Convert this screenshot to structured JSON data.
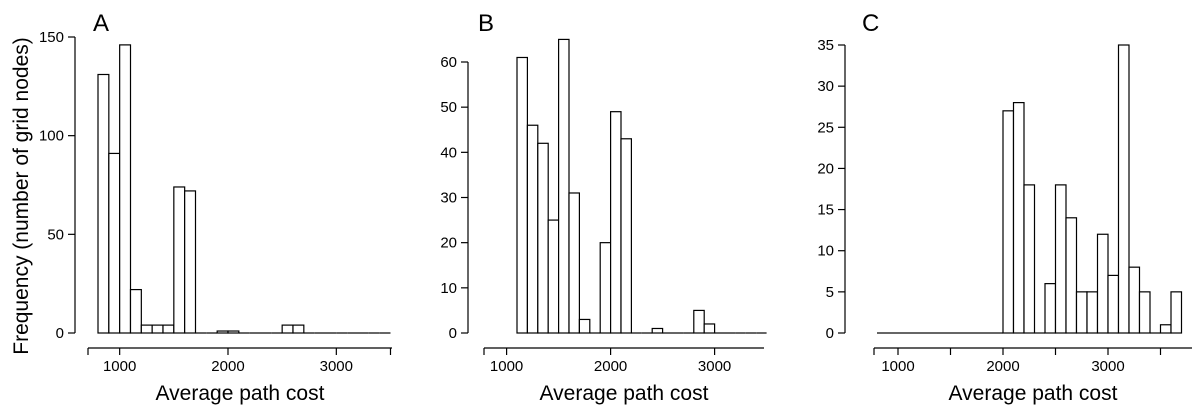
{
  "figure": {
    "ylabel": "Frequency (number of grid nodes)"
  },
  "chart_data": [
    {
      "type": "bar",
      "panel_label": "A",
      "xlabel": "Average path cost",
      "ylabel": "Frequency (number of grid nodes)",
      "x_bin_width": 100,
      "x_ticks": [
        1000,
        2000,
        3000
      ],
      "y_ticks": [
        0,
        50,
        100,
        150
      ],
      "xlim": [
        750,
        3550
      ],
      "ylim": [
        0,
        150
      ],
      "bins": [
        {
          "start": 800,
          "value": 131
        },
        {
          "start": 900,
          "value": 91
        },
        {
          "start": 1000,
          "value": 146
        },
        {
          "start": 1100,
          "value": 22
        },
        {
          "start": 1200,
          "value": 4
        },
        {
          "start": 1300,
          "value": 4
        },
        {
          "start": 1400,
          "value": 4
        },
        {
          "start": 1500,
          "value": 74
        },
        {
          "start": 1600,
          "value": 72
        },
        {
          "start": 1700,
          "value": 0
        },
        {
          "start": 1800,
          "value": 0
        },
        {
          "start": 1900,
          "value": 1
        },
        {
          "start": 2000,
          "value": 1
        },
        {
          "start": 2100,
          "value": 0
        },
        {
          "start": 2200,
          "value": 0
        },
        {
          "start": 2300,
          "value": 0
        },
        {
          "start": 2400,
          "value": 0
        },
        {
          "start": 2500,
          "value": 4
        },
        {
          "start": 2600,
          "value": 4
        },
        {
          "start": 2700,
          "value": 0
        },
        {
          "start": 2800,
          "value": 0
        },
        {
          "start": 2900,
          "value": 0
        },
        {
          "start": 3000,
          "value": 0
        },
        {
          "start": 3100,
          "value": 0
        },
        {
          "start": 3200,
          "value": 0
        },
        {
          "start": 3300,
          "value": 0
        },
        {
          "start": 3400,
          "value": 0
        }
      ],
      "grid": false
    },
    {
      "type": "bar",
      "panel_label": "B",
      "xlabel": "Average path cost",
      "x_bin_width": 100,
      "x_ticks": [
        1000,
        2000,
        3000
      ],
      "y_ticks": [
        0,
        10,
        20,
        30,
        40,
        50,
        60
      ],
      "xlim": [
        950,
        3600
      ],
      "ylim": [
        0,
        60
      ],
      "bins": [
        {
          "start": 1100,
          "value": 61
        },
        {
          "start": 1200,
          "value": 46
        },
        {
          "start": 1300,
          "value": 42
        },
        {
          "start": 1400,
          "value": 25
        },
        {
          "start": 1500,
          "value": 65
        },
        {
          "start": 1600,
          "value": 31
        },
        {
          "start": 1700,
          "value": 3
        },
        {
          "start": 1800,
          "value": 0
        },
        {
          "start": 1900,
          "value": 20
        },
        {
          "start": 2000,
          "value": 49
        },
        {
          "start": 2100,
          "value": 43
        },
        {
          "start": 2200,
          "value": 0
        },
        {
          "start": 2300,
          "value": 0
        },
        {
          "start": 2400,
          "value": 1
        },
        {
          "start": 2500,
          "value": 0
        },
        {
          "start": 2600,
          "value": 0
        },
        {
          "start": 2700,
          "value": 0
        },
        {
          "start": 2800,
          "value": 5
        },
        {
          "start": 2900,
          "value": 2
        },
        {
          "start": 3000,
          "value": 0
        },
        {
          "start": 3100,
          "value": 0
        },
        {
          "start": 3200,
          "value": 0
        },
        {
          "start": 3300,
          "value": 0
        },
        {
          "start": 3400,
          "value": 0
        }
      ],
      "grid": false
    },
    {
      "type": "bar",
      "panel_label": "C",
      "xlabel": "Average path cost",
      "x_bin_width": 100,
      "x_ticks": [
        1000,
        2000,
        3000
      ],
      "y_ticks": [
        0,
        5,
        10,
        15,
        20,
        25,
        30,
        35
      ],
      "xlim": [
        750,
        3700
      ],
      "ylim": [
        0,
        35
      ],
      "bins": [
        {
          "start": 800,
          "value": 0
        },
        {
          "start": 900,
          "value": 0
        },
        {
          "start": 1000,
          "value": 0
        },
        {
          "start": 1100,
          "value": 0
        },
        {
          "start": 1200,
          "value": 0
        },
        {
          "start": 1300,
          "value": 0
        },
        {
          "start": 1400,
          "value": 0
        },
        {
          "start": 1500,
          "value": 0
        },
        {
          "start": 1600,
          "value": 0
        },
        {
          "start": 1700,
          "value": 0
        },
        {
          "start": 1800,
          "value": 0
        },
        {
          "start": 1900,
          "value": 0
        },
        {
          "start": 2000,
          "value": 27
        },
        {
          "start": 2100,
          "value": 28
        },
        {
          "start": 2200,
          "value": 18
        },
        {
          "start": 2300,
          "value": 0
        },
        {
          "start": 2400,
          "value": 6
        },
        {
          "start": 2500,
          "value": 18
        },
        {
          "start": 2600,
          "value": 14
        },
        {
          "start": 2700,
          "value": 5
        },
        {
          "start": 2800,
          "value": 5
        },
        {
          "start": 2900,
          "value": 12
        },
        {
          "start": 3000,
          "value": 7
        },
        {
          "start": 3100,
          "value": 35
        },
        {
          "start": 3200,
          "value": 8
        },
        {
          "start": 3300,
          "value": 5
        },
        {
          "start": 3400,
          "value": 0
        },
        {
          "start": 3500,
          "value": 1
        },
        {
          "start": 3600,
          "value": 5
        }
      ],
      "grid": false
    }
  ]
}
